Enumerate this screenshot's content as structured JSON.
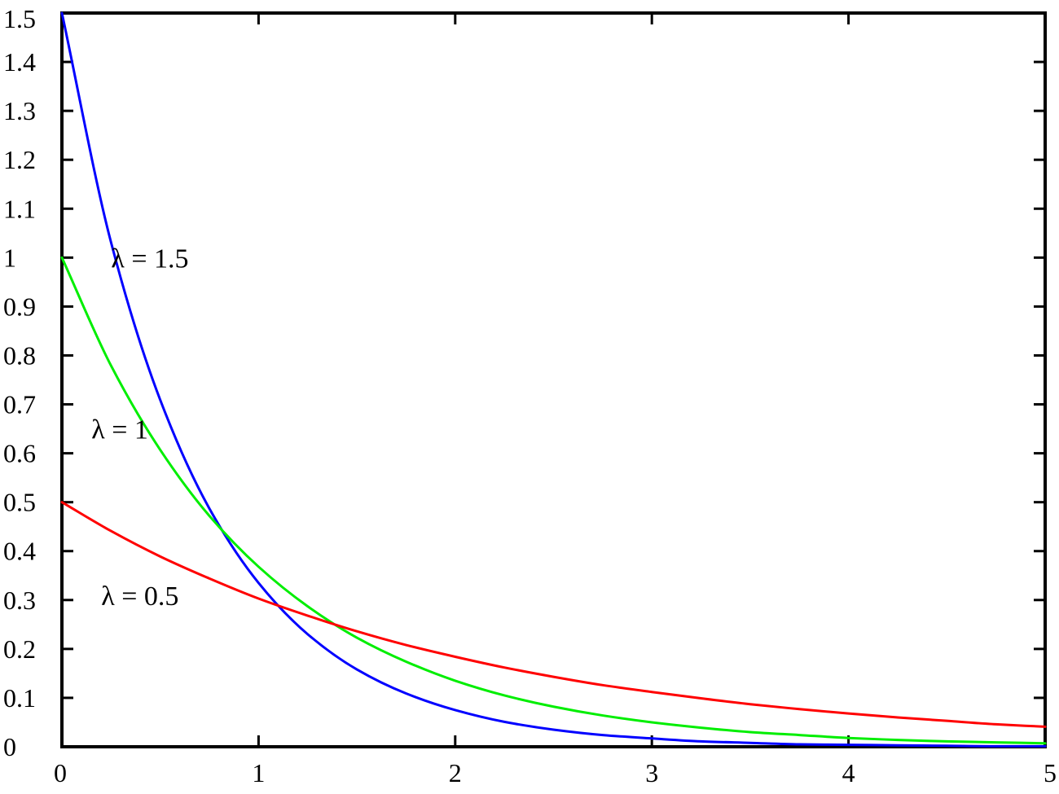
{
  "chart_data": {
    "type": "line",
    "title": "",
    "xlabel": "",
    "ylabel": "",
    "xlim": [
      0,
      5
    ],
    "ylim": [
      0,
      1.5
    ],
    "grid": false,
    "x_ticks": [
      "0",
      "1",
      "2",
      "3",
      "4",
      "5"
    ],
    "y_ticks": [
      "0",
      "0.1",
      "0.2",
      "0.3",
      "0.4",
      "0.5",
      "0.6",
      "0.7",
      "0.8",
      "0.9",
      "1",
      "1.1",
      "1.2",
      "1.3",
      "1.4",
      "1.5"
    ],
    "x": [
      0,
      0.25,
      0.5,
      0.75,
      1,
      1.25,
      1.5,
      1.75,
      2,
      2.25,
      2.5,
      2.75,
      3,
      3.25,
      3.5,
      3.75,
      4,
      4.25,
      4.5,
      4.75,
      5
    ],
    "series": [
      {
        "color": "#0000ff",
        "values": [
          1.5,
          1.031,
          0.709,
          0.487,
          0.335,
          0.23,
          0.158,
          0.109,
          0.075,
          0.051,
          0.035,
          0.024,
          0.017,
          0.011,
          0.008,
          0.005,
          0.004,
          0.003,
          0.002,
          0.001,
          0.001
        ]
      },
      {
        "color": "#00ee00",
        "values": [
          1.0,
          0.779,
          0.607,
          0.472,
          0.368,
          0.287,
          0.223,
          0.174,
          0.135,
          0.105,
          0.082,
          0.064,
          0.05,
          0.039,
          0.03,
          0.024,
          0.018,
          0.014,
          0.011,
          0.009,
          0.007
        ]
      },
      {
        "color": "#ff0000",
        "values": [
          0.5,
          0.441,
          0.389,
          0.344,
          0.303,
          0.268,
          0.236,
          0.208,
          0.184,
          0.162,
          0.143,
          0.126,
          0.112,
          0.099,
          0.087,
          0.077,
          0.068,
          0.06,
          0.053,
          0.046,
          0.041
        ]
      }
    ],
    "annotations": [
      {
        "text": "λ = 1.5",
        "x": 0.25,
        "y": 1.0
      },
      {
        "text": "λ = 1",
        "x": 0.15,
        "y": 0.65
      },
      {
        "text": "λ = 0.5",
        "x": 0.2,
        "y": 0.31
      }
    ]
  }
}
